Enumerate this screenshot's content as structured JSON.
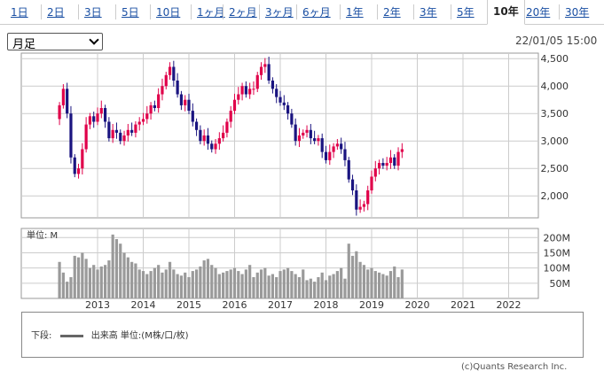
{
  "period_tabs": [
    {
      "label": "1日",
      "active": false
    },
    {
      "label": "2日",
      "active": false
    },
    {
      "label": "3日",
      "active": false
    },
    {
      "label": "5日",
      "active": false
    },
    {
      "label": "10日",
      "active": false
    },
    {
      "label": "1ヶ月",
      "active": false
    },
    {
      "label": "2ヶ月",
      "active": false
    },
    {
      "label": "3ヶ月",
      "active": false
    },
    {
      "label": "6ヶ月",
      "active": false
    },
    {
      "label": "1年",
      "active": false
    },
    {
      "label": "2年",
      "active": false
    },
    {
      "label": "3年",
      "active": false
    },
    {
      "label": "5年",
      "active": false
    },
    {
      "label": "10年",
      "active": true
    },
    {
      "label": "20年",
      "active": false
    },
    {
      "label": "30年",
      "active": false
    }
  ],
  "period_select": {
    "value": "月足"
  },
  "timestamp": "22/01/05 15:00",
  "colors": {
    "up": "#e0004a",
    "down": "#1a1480",
    "volume": "#9a9a9a",
    "grid": "#cccccc",
    "tab_link": "#1a4fa3"
  },
  "chart_data": {
    "type": "candlestick",
    "price_axis": {
      "ticks": [
        2000,
        2500,
        3000,
        3500,
        4000,
        4500
      ],
      "tick_labels": [
        "2,000",
        "2,500",
        "3,000",
        "3,500",
        "4,000",
        "4,500"
      ],
      "ylim": [
        1600,
        4600
      ]
    },
    "x_axis": {
      "labels": [
        "2013",
        "2014",
        "2015",
        "2016",
        "2017",
        "2018",
        "2019",
        "2020",
        "2021",
        "2022"
      ]
    },
    "volume_axis": {
      "unit_label": "単位: M",
      "ticks": [
        50,
        100,
        150,
        200
      ],
      "tick_labels": [
        "50M",
        "100M",
        "150M",
        "200M"
      ],
      "ylim": [
        0,
        230
      ]
    },
    "grid": true,
    "monthly_close": [
      3650,
      3950,
      3500,
      2700,
      2400,
      2500,
      2850,
      3300,
      3450,
      3350,
      3500,
      3600,
      3350,
      3050,
      3200,
      3150,
      3000,
      3100,
      3200,
      3150,
      3300,
      3350,
      3400,
      3500,
      3650,
      3600,
      3850,
      4000,
      4200,
      4350,
      4100,
      3850,
      3650,
      3750,
      3550,
      3350,
      3200,
      3000,
      3100,
      2950,
      2850,
      2950,
      3050,
      3150,
      3350,
      3550,
      3750,
      3850,
      4000,
      3850,
      3950,
      3950,
      4200,
      4350,
      4400,
      4100,
      3950,
      3800,
      3700,
      3650,
      3500,
      3300,
      3000,
      3100,
      3150,
      3200,
      3050,
      3000,
      3050,
      2800,
      2650,
      2800,
      2900,
      2950,
      2850,
      2650,
      2300,
      2100,
      1750,
      1800,
      1850,
      2100,
      2350,
      2500,
      2600,
      2550,
      2600,
      2700,
      2550,
      2800,
      2850
    ]
  },
  "volume_series": [
    120,
    85,
    55,
    70,
    140,
    135,
    150,
    130,
    100,
    110,
    95,
    105,
    110,
    125,
    210,
    195,
    180,
    150,
    135,
    120,
    115,
    95,
    90,
    80,
    90,
    100,
    110,
    85,
    95,
    120,
    95,
    80,
    75,
    85,
    70,
    90,
    95,
    105,
    125,
    130,
    110,
    100,
    80,
    85,
    90,
    95,
    100,
    90,
    80,
    95,
    110,
    70,
    85,
    95,
    100,
    75,
    80,
    70,
    90,
    95,
    100,
    90,
    80,
    70,
    95,
    60,
    65,
    55,
    70,
    85,
    60,
    75,
    80,
    90,
    100,
    65,
    180,
    140,
    155,
    120,
    110,
    95,
    100,
    90,
    85,
    80,
    75,
    90,
    105,
    70,
    95
  ],
  "legend": {
    "prefix": "下段:",
    "label": "出来高 単位:(M株/口/枚)"
  },
  "copyright": "(c)Quants Research Inc."
}
